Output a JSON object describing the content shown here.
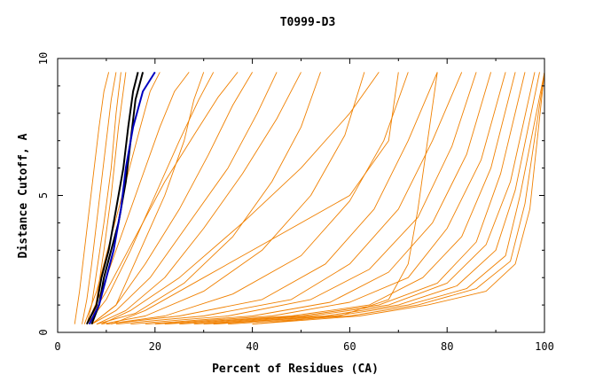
{
  "chart_data": {
    "type": "line",
    "title": "T0999-D3",
    "xlabel": "Percent of Residues (CA)",
    "ylabel": "Distance Cutoff, A",
    "xlim": [
      0,
      100
    ],
    "ylim": [
      0,
      10
    ],
    "xticks": [
      "0",
      "20",
      "40",
      "60",
      "80",
      "100"
    ],
    "xtick_values": [
      0,
      20,
      40,
      60,
      80,
      100
    ],
    "yticks": [
      "0",
      "5",
      "10"
    ],
    "ytick_values": [
      0,
      5,
      10
    ],
    "grid": false,
    "legend": "none",
    "colors": {
      "default": "#f08000",
      "highlight_black": "#000000",
      "highlight_blue": "#0000c0"
    },
    "series": [
      {
        "color": "default",
        "x": [
          3.5,
          4.5,
          5.5,
          6.5,
          7.5,
          8.5,
          9.5,
          10.5
        ],
        "y": [
          0.3,
          1.5,
          3.0,
          4.5,
          6.0,
          7.5,
          8.8,
          9.5
        ]
      },
      {
        "color": "default",
        "x": [
          5,
          6,
          7,
          8,
          9,
          10,
          11,
          12
        ],
        "y": [
          0.3,
          1.2,
          2.5,
          4.0,
          5.5,
          7.0,
          8.5,
          9.5
        ]
      },
      {
        "color": "default",
        "x": [
          6,
          7,
          8,
          9.5,
          11,
          12,
          13
        ],
        "y": [
          0.3,
          1.0,
          2.2,
          4.0,
          6.0,
          8.0,
          9.5
        ]
      },
      {
        "color": "default",
        "x": [
          7,
          8,
          9.5,
          11,
          12.5,
          14
        ],
        "y": [
          0.3,
          1.2,
          3.0,
          5.0,
          7.5,
          9.5
        ]
      },
      {
        "color": "default",
        "x": [
          5.5,
          8,
          11,
          14,
          17,
          19,
          21
        ],
        "y": [
          0.3,
          1.5,
          3.5,
          5.5,
          7.5,
          8.8,
          9.5
        ]
      },
      {
        "color": "default",
        "x": [
          6,
          9,
          13,
          17,
          21,
          24,
          27
        ],
        "y": [
          0.3,
          1.5,
          3.5,
          5.5,
          7.5,
          8.8,
          9.5
        ]
      },
      {
        "color": "default",
        "x": [
          6,
          10,
          15,
          20,
          25,
          29,
          32
        ],
        "y": [
          0.3,
          1.2,
          3.0,
          5.0,
          7.0,
          8.5,
          9.5
        ]
      },
      {
        "color": "default",
        "x": [
          7,
          12,
          18,
          25,
          31,
          36,
          40
        ],
        "y": [
          0.3,
          1.0,
          2.5,
          4.5,
          6.5,
          8.3,
          9.5
        ]
      },
      {
        "color": "default",
        "x": [
          7,
          12,
          19,
          27,
          35,
          41,
          45
        ],
        "y": [
          0.3,
          0.8,
          2.0,
          4.0,
          6.0,
          8.0,
          9.5
        ]
      },
      {
        "color": "default",
        "x": [
          8,
          14,
          22,
          30,
          38,
          45,
          50
        ],
        "y": [
          0.3,
          0.8,
          2.0,
          3.8,
          5.8,
          7.8,
          9.5
        ]
      },
      {
        "color": "default",
        "x": [
          8,
          16,
          26,
          36,
          44,
          50,
          54
        ],
        "y": [
          0.3,
          0.7,
          1.8,
          3.5,
          5.5,
          7.5,
          9.5
        ]
      },
      {
        "color": "default",
        "x": [
          9,
          18,
          30,
          42,
          52,
          59,
          63
        ],
        "y": [
          0.3,
          0.6,
          1.5,
          3.0,
          5.0,
          7.2,
          9.5
        ]
      },
      {
        "color": "default",
        "x": [
          10,
          22,
          36,
          50,
          60,
          67,
          72
        ],
        "y": [
          0.3,
          0.6,
          1.4,
          2.8,
          4.8,
          7.0,
          9.5
        ]
      },
      {
        "color": "default",
        "x": [
          10,
          25,
          42,
          55,
          65,
          72,
          78
        ],
        "y": [
          0.3,
          0.6,
          1.2,
          2.5,
          4.5,
          7.0,
          9.5
        ]
      },
      {
        "color": "default",
        "x": [
          12,
          30,
          48,
          60,
          70,
          77,
          83
        ],
        "y": [
          0.3,
          0.6,
          1.2,
          2.5,
          4.5,
          7.0,
          9.5
        ]
      },
      {
        "color": "default",
        "x": [
          15,
          35,
          52,
          64,
          74,
          81,
          86
        ],
        "y": [
          0.3,
          0.6,
          1.2,
          2.3,
          4.2,
          6.8,
          9.5
        ]
      },
      {
        "color": "default",
        "x": [
          18,
          40,
          56,
          68,
          77,
          84,
          89
        ],
        "y": [
          0.3,
          0.6,
          1.1,
          2.2,
          4.0,
          6.5,
          9.5
        ]
      },
      {
        "color": "default",
        "x": [
          20,
          44,
          60,
          72,
          80,
          87,
          92
        ],
        "y": [
          0.3,
          0.6,
          1.1,
          2.0,
          3.8,
          6.3,
          9.5
        ]
      },
      {
        "color": "default",
        "x": [
          22,
          48,
          64,
          75,
          83,
          89,
          94
        ],
        "y": [
          0.3,
          0.6,
          1.0,
          2.0,
          3.5,
          6.0,
          9.5
        ]
      },
      {
        "color": "default",
        "x": [
          25,
          50,
          66,
          78,
          86,
          91,
          96
        ],
        "y": [
          0.3,
          0.6,
          1.0,
          1.8,
          3.3,
          5.8,
          9.5
        ]
      },
      {
        "color": "default",
        "x": [
          28,
          52,
          68,
          80,
          88,
          93,
          98
        ],
        "y": [
          0.3,
          0.6,
          1.0,
          1.8,
          3.2,
          5.5,
          9.5
        ]
      },
      {
        "color": "default",
        "x": [
          30,
          55,
          70,
          82,
          90,
          94,
          99
        ],
        "y": [
          0.3,
          0.6,
          1.0,
          1.7,
          3.0,
          5.2,
          9.5
        ]
      },
      {
        "color": "default",
        "x": [
          32,
          57,
          72,
          84,
          92,
          95,
          100
        ],
        "y": [
          0.3,
          0.6,
          1.0,
          1.6,
          2.8,
          5.0,
          9.5
        ]
      },
      {
        "color": "default",
        "x": [
          35,
          60,
          74,
          86,
          93,
          96,
          100
        ],
        "y": [
          0.3,
          0.6,
          1.0,
          1.6,
          2.6,
          4.7,
          9.5
        ]
      },
      {
        "color": "default",
        "x": [
          40,
          62,
          76,
          88,
          94,
          97,
          100
        ],
        "y": [
          0.3,
          0.6,
          1.0,
          1.5,
          2.5,
          4.5,
          9.5
        ]
      },
      {
        "color": "default",
        "x": [
          40,
          58,
          68,
          72,
          74,
          76,
          78
        ],
        "y": [
          0.3,
          0.6,
          1.2,
          2.5,
          4.5,
          7.0,
          9.5
        ]
      },
      {
        "color": "default",
        "x": [
          6,
          10,
          16,
          22,
          28,
          33,
          37
        ],
        "y": [
          0.3,
          1.5,
          3.5,
          5.5,
          7.2,
          8.6,
          9.5
        ]
      },
      {
        "color": "default",
        "x": [
          7,
          12,
          17,
          22,
          26,
          28,
          30
        ],
        "y": [
          0.3,
          1.0,
          3.0,
          5.0,
          7.0,
          8.5,
          9.5
        ]
      },
      {
        "color": "default",
        "x": [
          11,
          18,
          30,
          45,
          60,
          68,
          70
        ],
        "y": [
          0.3,
          0.8,
          2.0,
          3.5,
          5.0,
          7.0,
          9.5
        ]
      },
      {
        "color": "default",
        "x": [
          9,
          15,
          25,
          38,
          50,
          60,
          66
        ],
        "y": [
          0.3,
          0.8,
          2.0,
          4.0,
          6.0,
          8.0,
          9.5
        ]
      },
      {
        "color": "highlight_black",
        "x": [
          7,
          8.5,
          9.5,
          11,
          12.5,
          14,
          15,
          16,
          17.5
        ],
        "y": [
          0.3,
          1.0,
          2.0,
          3.0,
          4.0,
          5.5,
          7.0,
          8.5,
          9.5
        ]
      },
      {
        "color": "highlight_black",
        "x": [
          6,
          8,
          9,
          10.5,
          12,
          13.5,
          14.5,
          15.5,
          16.5
        ],
        "y": [
          0.3,
          1.0,
          2.0,
          3.0,
          4.5,
          6.0,
          7.5,
          8.8,
          9.5
        ]
      },
      {
        "color": "highlight_blue",
        "x": [
          6.5,
          8.5,
          10,
          11.5,
          13,
          14,
          15.5,
          17.5,
          20
        ],
        "y": [
          0.3,
          1.0,
          2.0,
          3.0,
          4.5,
          6.0,
          7.5,
          8.8,
          9.5
        ]
      }
    ]
  }
}
